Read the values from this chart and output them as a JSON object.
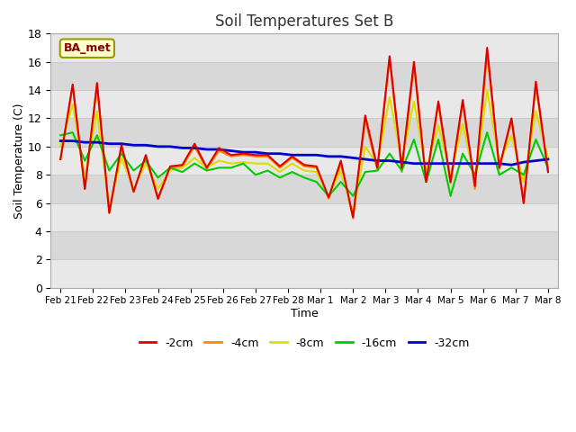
{
  "title": "Soil Temperatures Set B",
  "xlabel": "Time",
  "ylabel": "Soil Temperature (C)",
  "annotation": "BA_met",
  "ylim": [
    0,
    18
  ],
  "yticks": [
    0,
    2,
    4,
    6,
    8,
    10,
    12,
    14,
    16,
    18
  ],
  "x_labels": [
    "Feb 21",
    "Feb 22",
    "Feb 23",
    "Feb 24",
    "Feb 25",
    "Feb 26",
    "Feb 27",
    "Feb 28",
    "Mar 1",
    "Mar 2",
    "Mar 3",
    "Mar 4",
    "Mar 5",
    "Mar 6",
    "Mar 7",
    "Mar 8"
  ],
  "colors": {
    "2": "#dd0000",
    "4": "#ff8800",
    "8": "#dddd00",
    "16": "#00cc00",
    "32": "#0000cc"
  },
  "fig_bg": "#ffffff",
  "ax_bg": "#f0f0f0",
  "band_light": "#e8e8e8",
  "band_dark": "#d8d8d8",
  "grid_color": "#cccccc",
  "cm2": [
    9.1,
    14.4,
    7.0,
    14.5,
    5.3,
    10.1,
    6.8,
    9.4,
    6.3,
    8.6,
    8.7,
    10.2,
    8.5,
    9.9,
    9.4,
    9.5,
    9.4,
    9.4,
    8.6,
    9.3,
    8.7,
    8.6,
    6.4,
    9.0,
    5.0,
    12.2,
    8.5,
    16.4,
    8.5,
    16.0,
    7.5,
    13.2,
    7.5,
    13.3,
    7.2,
    17.0,
    8.5,
    12.0,
    6.0,
    14.6,
    8.2
  ],
  "cm4": [
    9.1,
    14.3,
    7.0,
    14.4,
    5.3,
    9.9,
    6.8,
    9.3,
    6.3,
    8.5,
    8.6,
    10.0,
    8.4,
    9.7,
    9.3,
    9.4,
    9.3,
    9.3,
    8.5,
    9.2,
    8.6,
    8.5,
    6.3,
    8.8,
    4.9,
    11.9,
    8.3,
    16.2,
    8.2,
    15.8,
    7.5,
    13.0,
    7.4,
    13.1,
    7.0,
    16.6,
    8.4,
    11.9,
    6.0,
    14.4,
    8.2
  ],
  "cm8": [
    10.0,
    13.0,
    7.8,
    12.5,
    5.6,
    9.2,
    7.0,
    8.8,
    7.0,
    8.3,
    8.5,
    9.2,
    8.5,
    9.0,
    8.8,
    8.9,
    8.8,
    8.8,
    8.2,
    8.8,
    8.3,
    8.2,
    6.5,
    8.3,
    5.2,
    10.0,
    8.7,
    13.5,
    9.0,
    13.2,
    8.3,
    11.5,
    8.0,
    11.6,
    7.6,
    14.0,
    8.8,
    10.8,
    7.5,
    12.5,
    9.2
  ],
  "cm16": [
    10.8,
    11.0,
    9.0,
    10.8,
    8.3,
    9.5,
    8.3,
    9.0,
    7.8,
    8.5,
    8.2,
    8.8,
    8.3,
    8.5,
    8.5,
    8.8,
    8.0,
    8.3,
    7.8,
    8.2,
    7.8,
    7.5,
    6.5,
    7.5,
    6.5,
    8.2,
    8.3,
    9.5,
    8.3,
    10.5,
    7.5,
    10.5,
    6.5,
    9.5,
    8.0,
    11.0,
    8.0,
    8.5,
    8.0,
    10.5,
    8.5
  ],
  "cm32": [
    10.4,
    10.4,
    10.3,
    10.3,
    10.2,
    10.2,
    10.1,
    10.1,
    10.0,
    10.0,
    9.9,
    9.9,
    9.8,
    9.8,
    9.7,
    9.6,
    9.6,
    9.5,
    9.5,
    9.4,
    9.4,
    9.4,
    9.3,
    9.3,
    9.2,
    9.1,
    9.0,
    9.0,
    8.9,
    8.8,
    8.8,
    8.8,
    8.8,
    8.8,
    8.8,
    8.8,
    8.8,
    8.7,
    8.9,
    9.0,
    9.1
  ]
}
